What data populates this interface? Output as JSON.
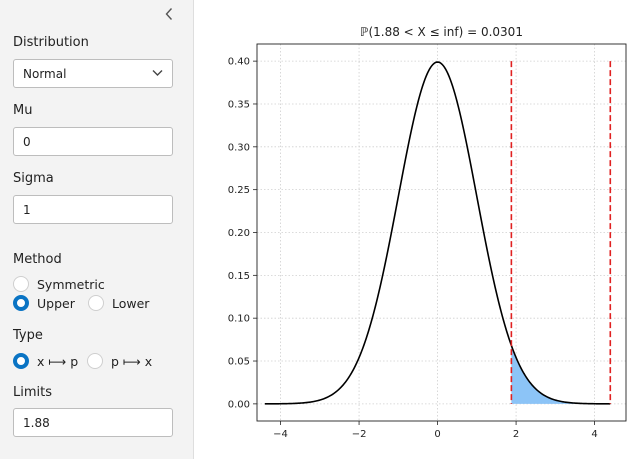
{
  "sidebar": {
    "distribution_label": "Distribution",
    "distribution_value": "Normal",
    "mu_label": "Mu",
    "mu_value": "0",
    "sigma_label": "Sigma",
    "sigma_value": "1",
    "method_label": "Method",
    "method_options": [
      "Symmetric",
      "Upper",
      "Lower"
    ],
    "method_selected": "Upper",
    "type_label": "Type",
    "type_options": [
      "x ⟼ p",
      "p ⟼ x"
    ],
    "type_selected": "x ⟼ p",
    "limits_label": "Limits",
    "limits_value": "1.88"
  },
  "chart_data": {
    "type": "area",
    "title": "ℙ(1.88 < X ≤ inf) = 0.0301",
    "distribution": "normal",
    "mu": 0,
    "sigma": 1,
    "xlim": [
      -4.6,
      4.8
    ],
    "ylim": [
      -0.02,
      0.42
    ],
    "xticks": [
      -4,
      -2,
      0,
      2,
      4
    ],
    "xtick_labels": [
      "−4",
      "−2",
      "0",
      "2",
      "4"
    ],
    "yticks": [
      0.0,
      0.05,
      0.1,
      0.15,
      0.2,
      0.25,
      0.3,
      0.35,
      0.4
    ],
    "ytick_labels": [
      "0.00",
      "0.05",
      "0.10",
      "0.15",
      "0.20",
      "0.25",
      "0.30",
      "0.35",
      "0.40"
    ],
    "curve_range": [
      -4.4,
      4.4
    ],
    "shaded_range": [
      1.88,
      4.4
    ],
    "limit_lines": [
      1.88,
      4.4
    ],
    "grid": true,
    "colors": {
      "curve": "#000000",
      "fill": "#8cc4f7",
      "limit": "#e02020",
      "grid": "#cfcfcf"
    }
  }
}
